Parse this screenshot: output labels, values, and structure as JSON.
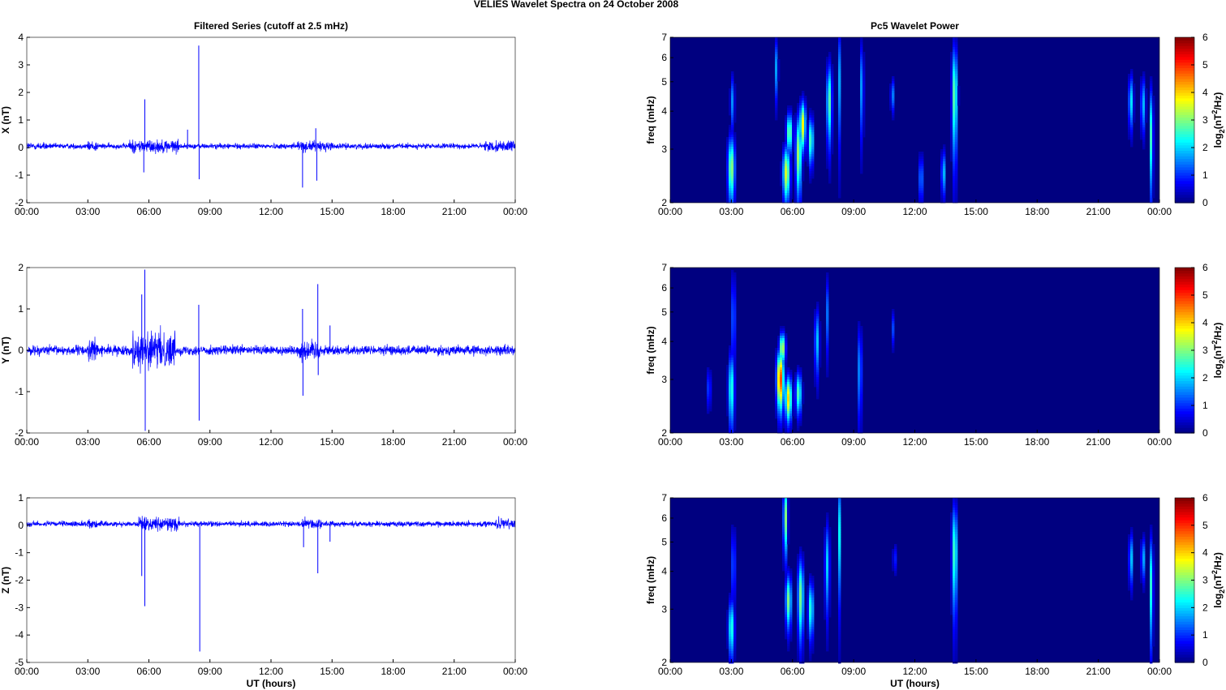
{
  "figure": {
    "suptitle": "VELIES Wavelet Spectra on 24 October   2008"
  },
  "chart_data": [
    {
      "type": "line",
      "title": "Filtered Series (cutoff at 2.5 mHz)",
      "ylabel": "X (nT)",
      "xlabel": "",
      "x_ticks": [
        "00:00",
        "03:00",
        "06:00",
        "09:00",
        "12:00",
        "15:00",
        "18:00",
        "21:00",
        "00:00"
      ],
      "xlim_hours": [
        0,
        24
      ],
      "ylim": [
        -2,
        4
      ],
      "y_ticks": [
        -2,
        -1,
        0,
        1,
        2,
        3,
        4
      ],
      "series": [
        {
          "color": "#0000ff",
          "baseline": 0.05,
          "noise_amplitude": 0.1,
          "active_intervals_hours": [
            [
              0.0,
              1.0,
              0.15
            ],
            [
              3.0,
              3.5,
              0.2
            ],
            [
              5.0,
              7.5,
              0.25
            ],
            [
              13.0,
              15.0,
              0.2
            ],
            [
              22.5,
              24.0,
              0.2
            ]
          ],
          "spikes": [
            {
              "t": 5.8,
              "v": 1.75
            },
            {
              "t": 5.75,
              "v": -0.9
            },
            {
              "t": 7.9,
              "v": 0.65
            },
            {
              "t": 8.45,
              "v": 3.7
            },
            {
              "t": 8.47,
              "v": -1.15
            },
            {
              "t": 13.55,
              "v": -1.45
            },
            {
              "t": 14.2,
              "v": 0.7
            },
            {
              "t": 14.25,
              "v": -1.2
            }
          ]
        }
      ]
    },
    {
      "type": "line",
      "title": "",
      "ylabel": "Y (nT)",
      "xlabel": "",
      "x_ticks": [
        "00:00",
        "03:00",
        "06:00",
        "09:00",
        "12:00",
        "15:00",
        "18:00",
        "21:00",
        "00:00"
      ],
      "xlim_hours": [
        0,
        24
      ],
      "ylim": [
        -2,
        2
      ],
      "y_ticks": [
        -2,
        -1,
        0,
        1,
        2
      ],
      "series": [
        {
          "color": "#0000ff",
          "baseline": 0.0,
          "noise_amplitude": 0.12,
          "active_intervals_hours": [
            [
              3.0,
              3.5,
              0.3
            ],
            [
              5.2,
              7.3,
              0.45
            ],
            [
              13.3,
              14.5,
              0.25
            ]
          ],
          "spikes": [
            {
              "t": 5.65,
              "v": 1.35
            },
            {
              "t": 5.8,
              "v": 1.95
            },
            {
              "t": 5.82,
              "v": -1.95
            },
            {
              "t": 8.45,
              "v": 1.1
            },
            {
              "t": 8.47,
              "v": -1.7
            },
            {
              "t": 13.55,
              "v": 1.0
            },
            {
              "t": 13.57,
              "v": -1.1
            },
            {
              "t": 14.3,
              "v": 1.6
            },
            {
              "t": 14.32,
              "v": -0.6
            },
            {
              "t": 14.9,
              "v": 0.6
            }
          ]
        }
      ]
    },
    {
      "type": "line",
      "title": "",
      "ylabel": "Z (nT)",
      "xlabel": "UT (hours)",
      "x_ticks": [
        "00:00",
        "03:00",
        "06:00",
        "09:00",
        "12:00",
        "15:00",
        "18:00",
        "21:00",
        "00:00"
      ],
      "xlim_hours": [
        0,
        24
      ],
      "ylim": [
        -5,
        1
      ],
      "y_ticks": [
        -5,
        -4,
        -3,
        -2,
        -1,
        0,
        1
      ],
      "series": [
        {
          "color": "#0000ff",
          "baseline": 0.05,
          "noise_amplitude": 0.1,
          "active_intervals_hours": [
            [
              3.0,
              3.5,
              0.2
            ],
            [
              5.5,
              7.5,
              0.25
            ],
            [
              13.5,
              14.5,
              0.2
            ],
            [
              23.0,
              24.0,
              0.2
            ]
          ],
          "spikes": [
            {
              "t": 5.65,
              "v": -1.85
            },
            {
              "t": 5.8,
              "v": -2.95
            },
            {
              "t": 8.5,
              "v": -4.6
            },
            {
              "t": 13.6,
              "v": -0.8
            },
            {
              "t": 14.3,
              "v": -1.75
            },
            {
              "t": 14.9,
              "v": -0.6
            }
          ]
        }
      ]
    },
    {
      "type": "heatmap",
      "title": "Pc5 Wavelet Power",
      "ylabel": "freq (mHz)",
      "xlabel": "",
      "x_ticks": [
        "00:00",
        "03:00",
        "06:00",
        "09:00",
        "12:00",
        "15:00",
        "18:00",
        "21:00",
        "00:00"
      ],
      "xlim_hours": [
        0,
        24
      ],
      "ylim_mHz": [
        2,
        7
      ],
      "y_scale": "log",
      "y_ticks": [
        2,
        3,
        4,
        5,
        6,
        7
      ],
      "colorbar": {
        "label": "log2(nT^2/Hz)",
        "ticks": [
          0,
          1,
          2,
          3,
          4,
          5,
          6
        ],
        "range": [
          0,
          6
        ],
        "colormap": "jet"
      },
      "blobs": [
        {
          "t": 3.0,
          "f": 2.6,
          "dt": 0.12,
          "df": 0.45,
          "p": 3.2
        },
        {
          "t": 3.05,
          "f": 4.3,
          "dt": 0.07,
          "df": 0.6,
          "p": 1.6
        },
        {
          "t": 5.2,
          "f": 5.5,
          "dt": 0.06,
          "df": 0.9,
          "p": 1.7
        },
        {
          "t": 5.7,
          "f": 2.5,
          "dt": 0.12,
          "df": 0.35,
          "p": 3.6
        },
        {
          "t": 5.85,
          "f": 3.4,
          "dt": 0.1,
          "df": 0.35,
          "p": 3.1
        },
        {
          "t": 6.3,
          "f": 2.9,
          "dt": 0.1,
          "df": 0.6,
          "p": 3.3
        },
        {
          "t": 6.5,
          "f": 3.6,
          "dt": 0.1,
          "df": 0.45,
          "p": 3.8
        },
        {
          "t": 6.9,
          "f": 3.2,
          "dt": 0.09,
          "df": 0.4,
          "p": 2.8
        },
        {
          "t": 7.8,
          "f": 4.3,
          "dt": 0.09,
          "df": 0.9,
          "p": 2.8
        },
        {
          "t": 8.3,
          "f": 5.0,
          "dt": 0.05,
          "df": 1.5,
          "p": 1.7
        },
        {
          "t": 9.4,
          "f": 4.8,
          "dt": 0.06,
          "df": 1.2,
          "p": 1.8
        },
        {
          "t": 10.9,
          "f": 4.5,
          "dt": 0.06,
          "df": 0.4,
          "p": 1.6
        },
        {
          "t": 12.3,
          "f": 2.4,
          "dt": 0.07,
          "df": 0.3,
          "p": 1.7
        },
        {
          "t": 13.4,
          "f": 2.5,
          "dt": 0.07,
          "df": 0.3,
          "p": 2.0
        },
        {
          "t": 13.95,
          "f": 4.5,
          "dt": 0.09,
          "df": 1.3,
          "p": 3.0
        },
        {
          "t": 22.6,
          "f": 4.3,
          "dt": 0.08,
          "df": 0.6,
          "p": 2.2
        },
        {
          "t": 23.2,
          "f": 4.2,
          "dt": 0.08,
          "df": 0.6,
          "p": 1.9
        },
        {
          "t": 23.6,
          "f": 3.3,
          "dt": 0.06,
          "df": 0.9,
          "p": 2.7
        }
      ]
    },
    {
      "type": "heatmap",
      "title": "",
      "ylabel": "freq (mHz)",
      "xlabel": "",
      "x_ticks": [
        "00:00",
        "03:00",
        "06:00",
        "09:00",
        "12:00",
        "15:00",
        "18:00",
        "21:00",
        "00:00"
      ],
      "xlim_hours": [
        0,
        24
      ],
      "ylim_mHz": [
        2,
        7
      ],
      "y_scale": "log",
      "y_ticks": [
        2,
        3,
        4,
        5,
        6,
        7
      ],
      "colorbar": {
        "label": "log2(nT^2/Hz)",
        "ticks": [
          0,
          1,
          2,
          3,
          4,
          5,
          6
        ],
        "range": [
          0,
          6
        ],
        "colormap": "jet"
      },
      "blobs": [
        {
          "t": 1.9,
          "f": 2.8,
          "dt": 0.06,
          "df": 0.3,
          "p": 1.4
        },
        {
          "t": 3.0,
          "f": 2.8,
          "dt": 0.1,
          "df": 0.55,
          "p": 2.6
        },
        {
          "t": 3.1,
          "f": 4.8,
          "dt": 0.06,
          "df": 1.2,
          "p": 1.7
        },
        {
          "t": 5.4,
          "f": 3.0,
          "dt": 0.12,
          "df": 0.45,
          "p": 5.0
        },
        {
          "t": 5.5,
          "f": 3.8,
          "dt": 0.1,
          "df": 0.3,
          "p": 3.6
        },
        {
          "t": 5.8,
          "f": 2.6,
          "dt": 0.11,
          "df": 0.3,
          "p": 4.0
        },
        {
          "t": 6.3,
          "f": 2.7,
          "dt": 0.1,
          "df": 0.3,
          "p": 2.8
        },
        {
          "t": 7.2,
          "f": 4.0,
          "dt": 0.08,
          "df": 0.7,
          "p": 2.0
        },
        {
          "t": 7.7,
          "f": 4.9,
          "dt": 0.05,
          "df": 1.0,
          "p": 1.4
        },
        {
          "t": 9.3,
          "f": 3.2,
          "dt": 0.06,
          "df": 0.8,
          "p": 2.0
        },
        {
          "t": 10.9,
          "f": 4.4,
          "dt": 0.05,
          "df": 0.4,
          "p": 1.3
        }
      ]
    },
    {
      "type": "heatmap",
      "title": "",
      "ylabel": "freq (mHz)",
      "xlabel": "UT (hours)",
      "x_ticks": [
        "00:00",
        "03:00",
        "06:00",
        "09:00",
        "12:00",
        "15:00",
        "18:00",
        "21:00",
        "00:00"
      ],
      "xlim_hours": [
        0,
        24
      ],
      "ylim_mHz": [
        2,
        7
      ],
      "y_scale": "log",
      "y_ticks": [
        2,
        3,
        4,
        5,
        6,
        7
      ],
      "colorbar": {
        "label": "log2(nT^2/Hz)",
        "ticks": [
          0,
          1,
          2,
          3,
          4,
          5,
          6
        ],
        "range": [
          0,
          6
        ],
        "colormap": "jet"
      },
      "blobs": [
        {
          "t": 3.0,
          "f": 2.6,
          "dt": 0.1,
          "df": 0.4,
          "p": 2.6
        },
        {
          "t": 3.1,
          "f": 4.2,
          "dt": 0.06,
          "df": 0.9,
          "p": 1.6
        },
        {
          "t": 5.65,
          "f": 6.0,
          "dt": 0.07,
          "df": 1.1,
          "p": 3.2
        },
        {
          "t": 5.8,
          "f": 3.2,
          "dt": 0.1,
          "df": 0.45,
          "p": 3.0
        },
        {
          "t": 6.4,
          "f": 3.3,
          "dt": 0.1,
          "df": 0.7,
          "p": 3.0
        },
        {
          "t": 6.9,
          "f": 3.0,
          "dt": 0.09,
          "df": 0.45,
          "p": 2.6
        },
        {
          "t": 7.7,
          "f": 4.2,
          "dt": 0.08,
          "df": 1.0,
          "p": 2.0
        },
        {
          "t": 8.3,
          "f": 5.3,
          "dt": 0.05,
          "df": 1.6,
          "p": 2.2
        },
        {
          "t": 11.0,
          "f": 4.4,
          "dt": 0.05,
          "df": 0.35,
          "p": 1.3
        },
        {
          "t": 13.95,
          "f": 4.6,
          "dt": 0.09,
          "df": 1.3,
          "p": 2.8
        },
        {
          "t": 22.6,
          "f": 4.4,
          "dt": 0.07,
          "df": 0.6,
          "p": 2.0
        },
        {
          "t": 23.2,
          "f": 4.4,
          "dt": 0.07,
          "df": 0.5,
          "p": 1.8
        },
        {
          "t": 23.6,
          "f": 3.6,
          "dt": 0.06,
          "df": 1.0,
          "p": 2.6
        }
      ]
    }
  ]
}
